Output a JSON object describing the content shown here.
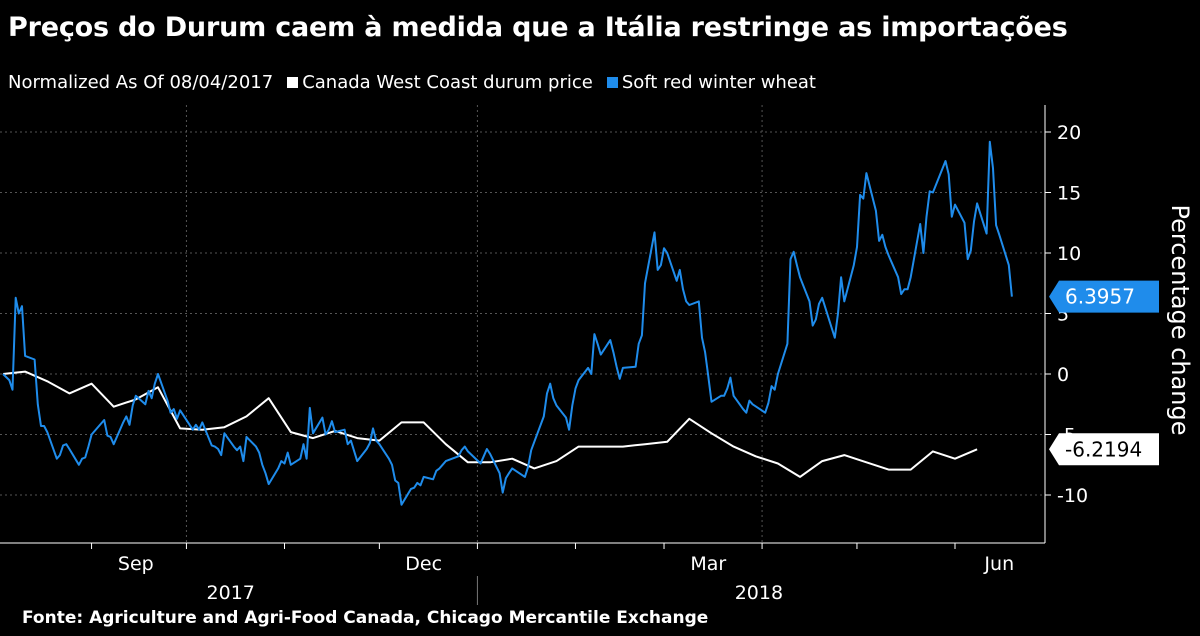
{
  "title": "Preços do Durum caem à medida que a Itália restringe as importações",
  "legend": {
    "normalized": "Normalized As Of 08/04/2017",
    "items": [
      {
        "label": "Canada West Coast durum price",
        "color": "#ffffff"
      },
      {
        "label": "Soft red winter wheat",
        "color": "#1f8ceb"
      }
    ]
  },
  "footer": "Fonte: Agriculture and Agri-Food Canada, Chicago Mercantile Exchange",
  "chart_data": {
    "type": "line",
    "title": "Preços do Durum caem à medida que a Itália restringe as importações",
    "xlabel": "",
    "ylabel": "Percentage change",
    "ylim": [
      -13,
      22
    ],
    "xlim": [
      "2017-08-03",
      "2018-06-30"
    ],
    "yticks": [
      20,
      15,
      10,
      5,
      0,
      -5,
      -10
    ],
    "month_labels": [
      {
        "label": "Sep",
        "date": "2017-09-15"
      },
      {
        "label": "Dec",
        "date": "2017-12-15"
      },
      {
        "label": "Mar",
        "date": "2018-03-15"
      },
      {
        "label": "Jun",
        "date": "2018-06-15"
      }
    ],
    "year_labels": [
      {
        "label": "2017",
        "date": "2017-10-15"
      },
      {
        "label": "2018",
        "date": "2018-03-31"
      }
    ],
    "month_ticks": [
      "2017-09-01",
      "2017-10-01",
      "2017-11-01",
      "2017-12-01",
      "2018-01-01",
      "2018-02-01",
      "2018-03-01",
      "2018-04-01",
      "2018-05-01",
      "2018-06-01"
    ],
    "grid": true,
    "legend_position": "top-left",
    "series": [
      {
        "name": "Canada West Coast durum price",
        "color": "#ffffff",
        "last_value": "-6.2194",
        "points": [
          [
            "2017-08-04",
            0
          ],
          [
            "2017-08-11",
            0.2
          ],
          [
            "2017-08-18",
            -0.6
          ],
          [
            "2017-08-25",
            -1.6
          ],
          [
            "2017-09-01",
            -0.8
          ],
          [
            "2017-09-08",
            -2.7
          ],
          [
            "2017-09-15",
            -2.1
          ],
          [
            "2017-09-22",
            -1.1
          ],
          [
            "2017-09-29",
            -4.5
          ],
          [
            "2017-10-06",
            -4.6
          ],
          [
            "2017-10-13",
            -4.4
          ],
          [
            "2017-10-20",
            -3.5
          ],
          [
            "2017-10-27",
            -2.0
          ],
          [
            "2017-11-03",
            -4.8
          ],
          [
            "2017-11-10",
            -5.3
          ],
          [
            "2017-11-17",
            -4.7
          ],
          [
            "2017-11-24",
            -5.3
          ],
          [
            "2017-12-01",
            -5.5
          ],
          [
            "2017-12-08",
            -4.0
          ],
          [
            "2017-12-15",
            -4.0
          ],
          [
            "2017-12-22",
            -5.8
          ],
          [
            "2017-12-29",
            -7.3
          ],
          [
            "2018-01-05",
            -7.3
          ],
          [
            "2018-01-12",
            -7.0
          ],
          [
            "2018-01-19",
            -7.8
          ],
          [
            "2018-01-26",
            -7.2
          ],
          [
            "2018-02-02",
            -6.0
          ],
          [
            "2018-02-09",
            -6.0
          ],
          [
            "2018-02-16",
            -6.0
          ],
          [
            "2018-02-23",
            -5.8
          ],
          [
            "2018-03-02",
            -5.6
          ],
          [
            "2018-03-09",
            -3.7
          ],
          [
            "2018-03-16",
            -4.9
          ],
          [
            "2018-03-23",
            -6.0
          ],
          [
            "2018-03-30",
            -6.8
          ],
          [
            "2018-04-06",
            -7.4
          ],
          [
            "2018-04-13",
            -8.5
          ],
          [
            "2018-04-20",
            -7.2
          ],
          [
            "2018-04-27",
            -6.7
          ],
          [
            "2018-05-04",
            -7.3
          ],
          [
            "2018-05-11",
            -7.9
          ],
          [
            "2018-05-18",
            -7.9
          ],
          [
            "2018-05-25",
            -6.4
          ],
          [
            "2018-06-01",
            -7.0
          ],
          [
            "2018-06-08",
            -6.2194
          ]
        ]
      },
      {
        "name": "Soft red winter wheat",
        "color": "#1f8ceb",
        "last_value": "6.3957",
        "points": [
          [
            "2017-08-04",
            0
          ],
          [
            "2017-08-06",
            -0.5
          ],
          [
            "2017-08-07",
            -1.3
          ],
          [
            "2017-08-08",
            6.3
          ],
          [
            "2017-08-09",
            5.0
          ],
          [
            "2017-08-10",
            5.6
          ],
          [
            "2017-08-11",
            1.5
          ],
          [
            "2017-08-14",
            1.2
          ],
          [
            "2017-08-15",
            -2.5
          ],
          [
            "2017-08-16",
            -4.3
          ],
          [
            "2017-08-17",
            -4.3
          ],
          [
            "2017-08-18",
            -4.8
          ],
          [
            "2017-08-21",
            -7.0
          ],
          [
            "2017-08-22",
            -6.7
          ],
          [
            "2017-08-23",
            -5.9
          ],
          [
            "2017-08-24",
            -5.8
          ],
          [
            "2017-08-25",
            -6.2
          ],
          [
            "2017-08-28",
            -7.5
          ],
          [
            "2017-08-29",
            -7.0
          ],
          [
            "2017-08-30",
            -6.9
          ],
          [
            "2017-08-31",
            -6.0
          ],
          [
            "2017-09-01",
            -5.0
          ],
          [
            "2017-09-05",
            -3.8
          ],
          [
            "2017-09-06",
            -5.1
          ],
          [
            "2017-09-07",
            -5.2
          ],
          [
            "2017-09-08",
            -5.8
          ],
          [
            "2017-09-11",
            -4.0
          ],
          [
            "2017-09-12",
            -3.5
          ],
          [
            "2017-09-13",
            -4.2
          ],
          [
            "2017-09-14",
            -2.6
          ],
          [
            "2017-09-15",
            -1.8
          ],
          [
            "2017-09-18",
            -2.5
          ],
          [
            "2017-09-19",
            -1.4
          ],
          [
            "2017-09-20",
            -2.0
          ],
          [
            "2017-09-21",
            -0.8
          ],
          [
            "2017-09-22",
            0.0
          ],
          [
            "2017-09-25",
            -2.2
          ],
          [
            "2017-09-26",
            -3.2
          ],
          [
            "2017-09-27",
            -2.9
          ],
          [
            "2017-09-28",
            -3.7
          ],
          [
            "2017-09-29",
            -3.0
          ],
          [
            "2017-10-02",
            -4.2
          ],
          [
            "2017-10-03",
            -4.6
          ],
          [
            "2017-10-04",
            -4.2
          ],
          [
            "2017-10-05",
            -4.6
          ],
          [
            "2017-10-06",
            -4.0
          ],
          [
            "2017-10-09",
            -5.9
          ],
          [
            "2017-10-10",
            -6.0
          ],
          [
            "2017-10-11",
            -6.2
          ],
          [
            "2017-10-12",
            -6.7
          ],
          [
            "2017-10-13",
            -4.9
          ],
          [
            "2017-10-16",
            -6.0
          ],
          [
            "2017-10-17",
            -6.3
          ],
          [
            "2017-10-18",
            -6.0
          ],
          [
            "2017-10-19",
            -7.2
          ],
          [
            "2017-10-20",
            -5.2
          ],
          [
            "2017-10-23",
            -6.0
          ],
          [
            "2017-10-24",
            -6.5
          ],
          [
            "2017-10-25",
            -7.5
          ],
          [
            "2017-10-26",
            -8.2
          ],
          [
            "2017-10-27",
            -9.1
          ],
          [
            "2017-10-30",
            -7.8
          ],
          [
            "2017-10-31",
            -7.2
          ],
          [
            "2017-11-01",
            -7.4
          ],
          [
            "2017-11-02",
            -6.5
          ],
          [
            "2017-11-03",
            -7.5
          ],
          [
            "2017-11-06",
            -7.0
          ],
          [
            "2017-11-07",
            -5.8
          ],
          [
            "2017-11-08",
            -7.0
          ],
          [
            "2017-11-09",
            -2.8
          ],
          [
            "2017-11-10",
            -4.9
          ],
          [
            "2017-11-13",
            -3.6
          ],
          [
            "2017-11-14",
            -5.0
          ],
          [
            "2017-11-15",
            -4.6
          ],
          [
            "2017-11-16",
            -3.9
          ],
          [
            "2017-11-17",
            -4.8
          ],
          [
            "2017-11-20",
            -4.6
          ],
          [
            "2017-11-21",
            -5.8
          ],
          [
            "2017-11-22",
            -5.5
          ],
          [
            "2017-11-24",
            -7.2
          ],
          [
            "2017-11-27",
            -6.2
          ],
          [
            "2017-11-28",
            -5.7
          ],
          [
            "2017-11-29",
            -4.5
          ],
          [
            "2017-11-30",
            -5.5
          ],
          [
            "2017-12-01",
            -5.8
          ],
          [
            "2017-12-04",
            -7.0
          ],
          [
            "2017-12-05",
            -7.5
          ],
          [
            "2017-12-06",
            -8.8
          ],
          [
            "2017-12-07",
            -9.0
          ],
          [
            "2017-12-08",
            -10.8
          ],
          [
            "2017-12-11",
            -9.5
          ],
          [
            "2017-12-12",
            -9.4
          ],
          [
            "2017-12-13",
            -9.0
          ],
          [
            "2017-12-14",
            -9.2
          ],
          [
            "2017-12-15",
            -8.5
          ],
          [
            "2017-12-18",
            -8.7
          ],
          [
            "2017-12-19",
            -8.0
          ],
          [
            "2017-12-20",
            -7.8
          ],
          [
            "2017-12-21",
            -7.5
          ],
          [
            "2017-12-22",
            -7.2
          ],
          [
            "2017-12-26",
            -6.8
          ],
          [
            "2017-12-27",
            -6.3
          ],
          [
            "2017-12-28",
            -6.0
          ],
          [
            "2017-12-29",
            -6.4
          ],
          [
            "2018-01-02",
            -7.4
          ],
          [
            "2018-01-03",
            -6.8
          ],
          [
            "2018-01-04",
            -6.2
          ],
          [
            "2018-01-05",
            -6.6
          ],
          [
            "2018-01-08",
            -8.2
          ],
          [
            "2018-01-09",
            -9.8
          ],
          [
            "2018-01-10",
            -8.6
          ],
          [
            "2018-01-11",
            -8.2
          ],
          [
            "2018-01-12",
            -7.8
          ],
          [
            "2018-01-16",
            -8.5
          ],
          [
            "2018-01-17",
            -7.7
          ],
          [
            "2018-01-18",
            -6.3
          ],
          [
            "2018-01-19",
            -5.6
          ],
          [
            "2018-01-22",
            -3.5
          ],
          [
            "2018-01-23",
            -1.6
          ],
          [
            "2018-01-24",
            -0.8
          ],
          [
            "2018-01-25",
            -2.0
          ],
          [
            "2018-01-26",
            -2.6
          ],
          [
            "2018-01-29",
            -3.6
          ],
          [
            "2018-01-30",
            -4.6
          ],
          [
            "2018-01-31",
            -2.6
          ],
          [
            "2018-02-01",
            -1.2
          ],
          [
            "2018-02-02",
            -0.5
          ],
          [
            "2018-02-05",
            0.5
          ],
          [
            "2018-02-06",
            0.0
          ],
          [
            "2018-02-07",
            3.3
          ],
          [
            "2018-02-08",
            2.5
          ],
          [
            "2018-02-09",
            1.6
          ],
          [
            "2018-02-12",
            2.8
          ],
          [
            "2018-02-13",
            1.8
          ],
          [
            "2018-02-14",
            0.6
          ],
          [
            "2018-02-15",
            -0.4
          ],
          [
            "2018-02-16",
            0.5
          ],
          [
            "2018-02-20",
            0.6
          ],
          [
            "2018-02-21",
            2.5
          ],
          [
            "2018-02-22",
            3.2
          ],
          [
            "2018-02-23",
            7.5
          ],
          [
            "2018-02-26",
            11.7
          ],
          [
            "2018-02-27",
            8.6
          ],
          [
            "2018-02-28",
            9.0
          ],
          [
            "2018-03-01",
            10.4
          ],
          [
            "2018-03-02",
            10.0
          ],
          [
            "2018-03-05",
            7.7
          ],
          [
            "2018-03-06",
            8.6
          ],
          [
            "2018-03-07",
            7.0
          ],
          [
            "2018-03-08",
            6.0
          ],
          [
            "2018-03-09",
            5.7
          ],
          [
            "2018-03-12",
            6.0
          ],
          [
            "2018-03-13",
            3.0
          ],
          [
            "2018-03-14",
            1.8
          ],
          [
            "2018-03-15",
            -0.2
          ],
          [
            "2018-03-16",
            -2.3
          ],
          [
            "2018-03-19",
            -1.8
          ],
          [
            "2018-03-20",
            -1.8
          ],
          [
            "2018-03-21",
            -1.2
          ],
          [
            "2018-03-22",
            -0.3
          ],
          [
            "2018-03-23",
            -1.8
          ],
          [
            "2018-03-26",
            -2.9
          ],
          [
            "2018-03-27",
            -3.2
          ],
          [
            "2018-03-28",
            -2.2
          ],
          [
            "2018-03-29",
            -2.5
          ],
          [
            "2018-04-02",
            -3.2
          ],
          [
            "2018-04-03",
            -2.4
          ],
          [
            "2018-04-04",
            -1.0
          ],
          [
            "2018-04-05",
            -1.3
          ],
          [
            "2018-04-06",
            0.0
          ],
          [
            "2018-04-09",
            2.5
          ],
          [
            "2018-04-10",
            9.5
          ],
          [
            "2018-04-11",
            10.1
          ],
          [
            "2018-04-12",
            9.0
          ],
          [
            "2018-04-13",
            8.0
          ],
          [
            "2018-04-16",
            6.0
          ],
          [
            "2018-04-17",
            4.0
          ],
          [
            "2018-04-18",
            4.5
          ],
          [
            "2018-04-19",
            5.8
          ],
          [
            "2018-04-20",
            6.3
          ],
          [
            "2018-04-23",
            3.8
          ],
          [
            "2018-04-24",
            3.0
          ],
          [
            "2018-04-25",
            5.0
          ],
          [
            "2018-04-26",
            8.0
          ],
          [
            "2018-04-27",
            6.0
          ],
          [
            "2018-04-30",
            9.0
          ],
          [
            "2018-05-01",
            10.5
          ],
          [
            "2018-05-02",
            14.8
          ],
          [
            "2018-05-03",
            14.5
          ],
          [
            "2018-05-04",
            16.6
          ],
          [
            "2018-05-07",
            13.5
          ],
          [
            "2018-05-08",
            11.0
          ],
          [
            "2018-05-09",
            11.5
          ],
          [
            "2018-05-10",
            10.5
          ],
          [
            "2018-05-11",
            9.8
          ],
          [
            "2018-05-14",
            8.0
          ],
          [
            "2018-05-15",
            6.6
          ],
          [
            "2018-05-16",
            7.0
          ],
          [
            "2018-05-17",
            7.0
          ],
          [
            "2018-05-18",
            8.0
          ],
          [
            "2018-05-21",
            12.4
          ],
          [
            "2018-05-22",
            10.0
          ],
          [
            "2018-05-23",
            13.0
          ],
          [
            "2018-05-24",
            15.1
          ],
          [
            "2018-05-25",
            15.0
          ],
          [
            "2018-05-29",
            17.6
          ],
          [
            "2018-05-30",
            16.5
          ],
          [
            "2018-05-31",
            13.0
          ],
          [
            "2018-06-01",
            14.0
          ],
          [
            "2018-06-04",
            12.5
          ],
          [
            "2018-06-05",
            9.5
          ],
          [
            "2018-06-06",
            10.2
          ],
          [
            "2018-06-07",
            12.6
          ],
          [
            "2018-06-08",
            14.1
          ],
          [
            "2018-06-11",
            11.6
          ],
          [
            "2018-06-12",
            19.2
          ],
          [
            "2018-06-13",
            17.0
          ],
          [
            "2018-06-14",
            12.3
          ],
          [
            "2018-06-15",
            11.5
          ],
          [
            "2018-06-18",
            9.0
          ],
          [
            "2018-06-19",
            6.3957
          ]
        ]
      }
    ]
  }
}
